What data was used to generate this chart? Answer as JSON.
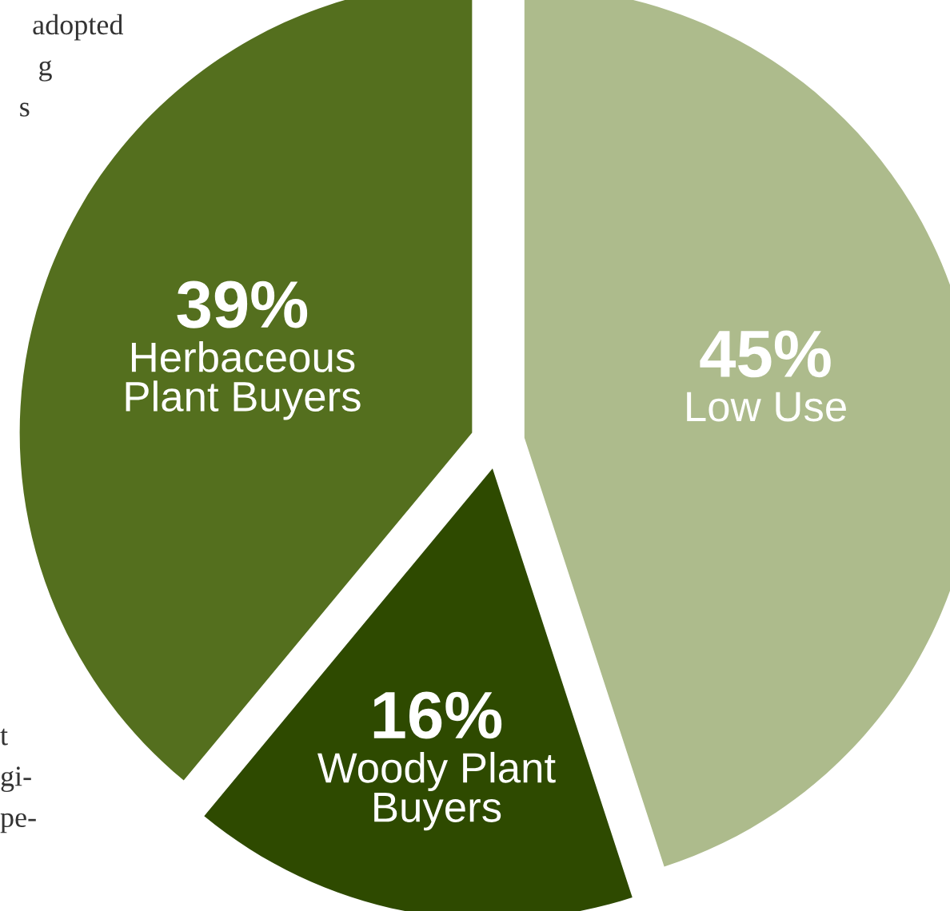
{
  "chart_data": {
    "type": "pie",
    "categories": [
      "Low Use",
      "Woody Plant\nBuyers",
      "Herbaceous\nPlant Buyers"
    ],
    "values": [
      45,
      16,
      39
    ],
    "colors": [
      "#adbb8c",
      "#2e4a00",
      "#546f1e"
    ],
    "value_labels": [
      "45%",
      "16%",
      "39%"
    ],
    "annotations": [
      "adopted",
      "g",
      "s",
      "t",
      "gi-",
      "pe-"
    ]
  }
}
